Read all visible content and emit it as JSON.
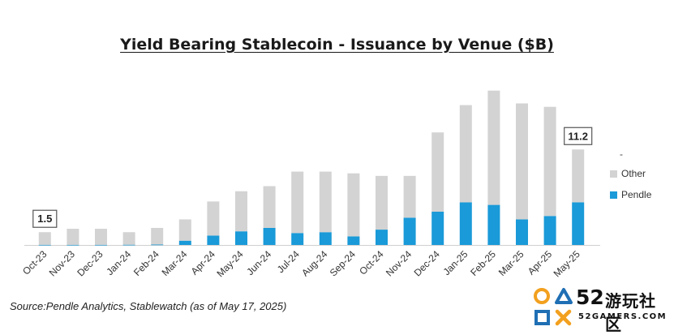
{
  "chart_data": {
    "type": "bar",
    "stacked": true,
    "title": "Yield Bearing Stablecoin - Issuance by Venue ($B)",
    "categories": [
      "Oct-23",
      "Nov-23",
      "Dec-23",
      "Jan-24",
      "Feb-24",
      "Mar-24",
      "Apr-24",
      "May-24",
      "Jun-24",
      "Jul-24",
      "Aug-24",
      "Sep-24",
      "Oct-24",
      "Nov-24",
      "Dec-24",
      "Jan-25",
      "Feb-25",
      "Mar-25",
      "Apr-25",
      "May-25"
    ],
    "series": [
      {
        "name": "Pendle",
        "color": "#1a9ad8",
        "values": [
          0.02,
          0.02,
          0.02,
          0.03,
          0.05,
          0.5,
          1.1,
          1.6,
          2.0,
          1.4,
          1.5,
          1.0,
          1.8,
          3.2,
          3.9,
          5.0,
          4.7,
          3.0,
          3.4,
          5.0
        ]
      },
      {
        "name": "Other",
        "color": "#d3d3d3",
        "values": [
          1.48,
          1.88,
          1.88,
          1.47,
          1.95,
          2.5,
          4.0,
          4.7,
          4.9,
          7.2,
          7.1,
          7.4,
          6.3,
          4.9,
          9.3,
          11.4,
          13.4,
          13.6,
          12.8,
          6.2
        ]
      }
    ],
    "data_labels": [
      {
        "category": "Oct-23",
        "text": "1.5"
      },
      {
        "category": "May-25",
        "text": "11.2"
      }
    ],
    "ylim": [
      0,
      19.5
    ],
    "grid": false,
    "legend": {
      "position": "right",
      "entries": [
        "-",
        "Other",
        "Pendle"
      ]
    }
  },
  "source": "Source:Pendle Analytics, Stablewatch (as of May 17, 2025)",
  "watermark": {
    "number": "52",
    "chinese": "游玩社区",
    "url": "52GAMERS.COM"
  }
}
